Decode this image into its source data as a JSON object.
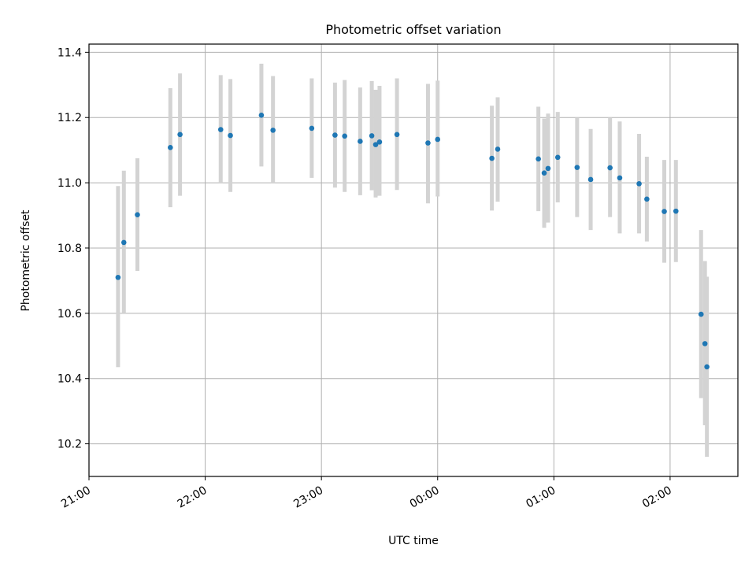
{
  "chart_data": {
    "type": "scatter",
    "title": "Photometric offset variation",
    "xlabel": "UTC time",
    "ylabel": "Photometric offset",
    "x_axis": {
      "type": "time",
      "range": [
        "2000-01-01 21:00",
        "2000-01-02 02:35"
      ],
      "ticks": [
        {
          "value": "2000-01-01 21:00",
          "label": "21:00"
        },
        {
          "value": "2000-01-01 22:00",
          "label": "22:00"
        },
        {
          "value": "2000-01-01 23:00",
          "label": "23:00"
        },
        {
          "value": "2000-01-02 00:00",
          "label": "00:00"
        },
        {
          "value": "2000-01-02 01:00",
          "label": "01:00"
        },
        {
          "value": "2000-01-02 02:00",
          "label": "02:00"
        }
      ]
    },
    "y_axis": {
      "range": [
        10.1,
        11.425
      ],
      "ticks": [
        10.2,
        10.4,
        10.6,
        10.8,
        11.0,
        11.2,
        11.4
      ],
      "tick_labels": [
        "10.2",
        "10.4",
        "10.6",
        "10.8",
        "11.0",
        "11.2",
        "11.4"
      ]
    },
    "grid": true,
    "point_color": "#1f77b4",
    "errorbar_color": "#d3d3d3",
    "points": [
      {
        "x": "2000-01-01 21:15",
        "y": 10.71,
        "ylow": 10.435,
        "yhigh": 10.99
      },
      {
        "x": "2000-01-01 21:18",
        "y": 10.817,
        "ylow": 10.6,
        "yhigh": 11.037
      },
      {
        "x": "2000-01-01 21:25",
        "y": 10.902,
        "ylow": 10.73,
        "yhigh": 11.075
      },
      {
        "x": "2000-01-01 21:42",
        "y": 11.108,
        "ylow": 10.925,
        "yhigh": 11.29
      },
      {
        "x": "2000-01-01 21:47",
        "y": 11.148,
        "ylow": 10.96,
        "yhigh": 11.335
      },
      {
        "x": "2000-01-01 22:08",
        "y": 11.163,
        "ylow": 11.0,
        "yhigh": 11.33
      },
      {
        "x": "2000-01-01 22:13",
        "y": 11.145,
        "ylow": 10.972,
        "yhigh": 11.318
      },
      {
        "x": "2000-01-01 22:29",
        "y": 11.207,
        "ylow": 11.05,
        "yhigh": 11.365
      },
      {
        "x": "2000-01-01 22:35",
        "y": 11.161,
        "ylow": 11.0,
        "yhigh": 11.327
      },
      {
        "x": "2000-01-01 22:55",
        "y": 11.167,
        "ylow": 11.015,
        "yhigh": 11.32
      },
      {
        "x": "2000-01-01 23:07",
        "y": 11.146,
        "ylow": 10.985,
        "yhigh": 11.307
      },
      {
        "x": "2000-01-01 23:12",
        "y": 11.143,
        "ylow": 10.972,
        "yhigh": 11.315
      },
      {
        "x": "2000-01-01 23:20",
        "y": 11.127,
        "ylow": 10.962,
        "yhigh": 11.292
      },
      {
        "x": "2000-01-01 23:26",
        "y": 11.144,
        "ylow": 10.977,
        "yhigh": 11.312
      },
      {
        "x": "2000-01-01 23:28",
        "y": 11.117,
        "ylow": 10.955,
        "yhigh": 11.285
      },
      {
        "x": "2000-01-01 23:30",
        "y": 11.125,
        "ylow": 10.96,
        "yhigh": 11.297
      },
      {
        "x": "2000-01-01 23:39",
        "y": 11.148,
        "ylow": 10.978,
        "yhigh": 11.32
      },
      {
        "x": "2000-01-01 23:55",
        "y": 11.122,
        "ylow": 10.937,
        "yhigh": 11.303
      },
      {
        "x": "2000-01-02 00:00",
        "y": 11.133,
        "ylow": 10.958,
        "yhigh": 11.313
      },
      {
        "x": "2000-01-02 00:28",
        "y": 11.075,
        "ylow": 10.915,
        "yhigh": 11.236
      },
      {
        "x": "2000-01-02 00:31",
        "y": 11.103,
        "ylow": 10.942,
        "yhigh": 11.262
      },
      {
        "x": "2000-01-02 00:52",
        "y": 11.073,
        "ylow": 10.913,
        "yhigh": 11.233
      },
      {
        "x": "2000-01-02 00:55",
        "y": 11.03,
        "ylow": 10.862,
        "yhigh": 11.197
      },
      {
        "x": "2000-01-02 00:57",
        "y": 11.044,
        "ylow": 10.878,
        "yhigh": 11.212
      },
      {
        "x": "2000-01-02 01:02",
        "y": 11.078,
        "ylow": 10.94,
        "yhigh": 11.217
      },
      {
        "x": "2000-01-02 01:12",
        "y": 11.047,
        "ylow": 10.895,
        "yhigh": 11.2
      },
      {
        "x": "2000-01-02 01:19",
        "y": 11.01,
        "ylow": 10.855,
        "yhigh": 11.165
      },
      {
        "x": "2000-01-02 01:29",
        "y": 11.046,
        "ylow": 10.895,
        "yhigh": 11.2
      },
      {
        "x": "2000-01-02 01:34",
        "y": 11.015,
        "ylow": 10.845,
        "yhigh": 11.188
      },
      {
        "x": "2000-01-02 01:44",
        "y": 10.997,
        "ylow": 10.845,
        "yhigh": 11.15
      },
      {
        "x": "2000-01-02 01:48",
        "y": 10.95,
        "ylow": 10.82,
        "yhigh": 11.08
      },
      {
        "x": "2000-01-02 01:57",
        "y": 10.912,
        "ylow": 10.755,
        "yhigh": 11.07
      },
      {
        "x": "2000-01-02 02:03",
        "y": 10.913,
        "ylow": 10.757,
        "yhigh": 11.07
      },
      {
        "x": "2000-01-02 02:16",
        "y": 10.597,
        "ylow": 10.34,
        "yhigh": 10.855
      },
      {
        "x": "2000-01-02 02:18",
        "y": 10.507,
        "ylow": 10.257,
        "yhigh": 10.76
      },
      {
        "x": "2000-01-02 02:19",
        "y": 10.436,
        "ylow": 10.16,
        "yhigh": 10.712
      }
    ]
  }
}
